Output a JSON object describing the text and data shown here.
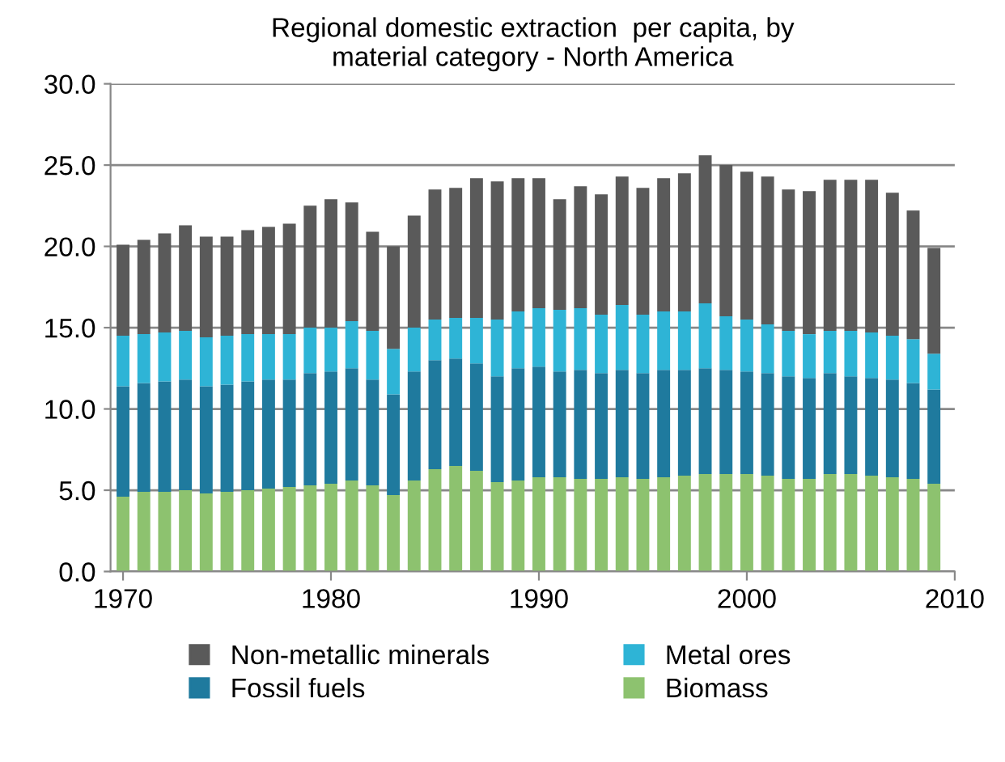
{
  "chart_data": {
    "type": "bar",
    "title": "Regional domestic extraction  per capita, by\nmaterial category - North America",
    "stacked": true,
    "grid": "y",
    "legend": "bottom",
    "x": [
      1970,
      1971,
      1972,
      1973,
      1974,
      1975,
      1976,
      1977,
      1978,
      1979,
      1980,
      1981,
      1982,
      1983,
      1984,
      1985,
      1986,
      1987,
      1988,
      1989,
      1990,
      1991,
      1992,
      1993,
      1994,
      1995,
      1996,
      1997,
      1998,
      1999,
      2000,
      2001,
      2002,
      2003,
      2004,
      2005,
      2006,
      2007,
      2008,
      2009
    ],
    "xlim": [
      1969.4,
      2010
    ],
    "xticks": [
      1970,
      1980,
      1990,
      2000,
      2010
    ],
    "ylim": [
      0,
      30
    ],
    "yticks": [
      {
        "value": 0,
        "label": "0.0"
      },
      {
        "value": 5,
        "label": "5.0"
      },
      {
        "value": 10,
        "label": "10.0"
      },
      {
        "value": 15,
        "label": "15.0"
      },
      {
        "value": 20,
        "label": "20.0"
      },
      {
        "value": 25,
        "label": "25.0"
      },
      {
        "value": 30,
        "label": "30.0"
      }
    ],
    "series": [
      {
        "name": "Biomass",
        "color": "#8dc26f",
        "values": [
          4.6,
          4.9,
          4.9,
          5.0,
          4.8,
          4.9,
          5.0,
          5.1,
          5.2,
          5.3,
          5.4,
          5.6,
          5.3,
          4.7,
          5.6,
          6.3,
          6.5,
          6.2,
          5.5,
          5.6,
          5.8,
          5.8,
          5.7,
          5.7,
          5.8,
          5.7,
          5.8,
          5.9,
          6.0,
          6.0,
          6.0,
          5.9,
          5.7,
          5.7,
          6.0,
          6.0,
          5.9,
          5.8,
          5.7,
          5.4
        ]
      },
      {
        "name": "Fossil fuels",
        "color": "#1f7a9e",
        "values": [
          6.8,
          6.7,
          6.8,
          6.8,
          6.6,
          6.6,
          6.7,
          6.7,
          6.6,
          6.9,
          6.9,
          6.9,
          6.5,
          6.2,
          6.7,
          6.7,
          6.6,
          6.6,
          6.5,
          6.9,
          6.8,
          6.5,
          6.7,
          6.5,
          6.6,
          6.5,
          6.6,
          6.5,
          6.5,
          6.4,
          6.3,
          6.3,
          6.3,
          6.2,
          6.2,
          6.0,
          6.0,
          6.0,
          5.9,
          5.8
        ]
      },
      {
        "name": "Metal ores",
        "color": "#2eb4d6",
        "values": [
          3.1,
          3.0,
          3.0,
          3.0,
          3.0,
          3.0,
          2.9,
          2.8,
          2.8,
          2.8,
          2.7,
          2.9,
          3.0,
          2.8,
          2.7,
          2.5,
          2.5,
          2.8,
          3.5,
          3.5,
          3.6,
          3.8,
          3.8,
          3.6,
          4.0,
          3.6,
          3.6,
          3.6,
          4.0,
          3.3,
          3.2,
          3.0,
          2.8,
          2.7,
          2.6,
          2.8,
          2.8,
          2.7,
          2.7,
          2.2
        ]
      },
      {
        "name": "Non-metallic minerals",
        "color": "#5a5a5a",
        "values": [
          5.6,
          5.8,
          6.1,
          6.5,
          6.2,
          6.1,
          6.4,
          6.6,
          6.8,
          7.5,
          7.9,
          7.3,
          6.1,
          6.3,
          6.9,
          8.0,
          8.0,
          8.6,
          8.5,
          8.2,
          8.0,
          6.8,
          7.5,
          7.4,
          7.9,
          7.8,
          8.2,
          8.5,
          9.1,
          9.3,
          9.1,
          9.1,
          8.7,
          8.8,
          9.3,
          9.3,
          9.4,
          8.8,
          7.9,
          6.5
        ]
      }
    ]
  }
}
